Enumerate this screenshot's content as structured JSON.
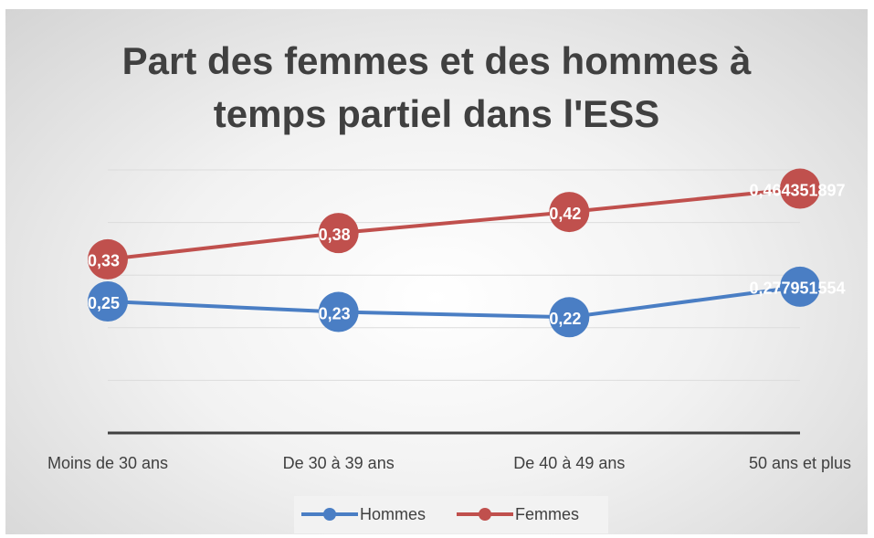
{
  "chart_data": {
    "type": "line",
    "title": "Part des femmes et des hommes à temps partiel dans l'ESS",
    "categories": [
      "Moins de 30 ans",
      "De 30 à 39 ans",
      "De 40 à 49 ans",
      "50 ans et plus"
    ],
    "series": [
      {
        "name": "Hommes",
        "color": "#4a7ec4",
        "values": [
          0.25,
          0.23,
          0.22,
          0.277951554
        ],
        "value_labels": [
          "0,25",
          "0,23",
          "0,22",
          "0,277951554"
        ]
      },
      {
        "name": "Femmes",
        "color": "#c0504d",
        "values": [
          0.33,
          0.38,
          0.42,
          0.464351897
        ],
        "value_labels": [
          "0,33",
          "0,38",
          "0,42",
          "0,464351897"
        ]
      }
    ],
    "ylim": [
      0,
      0.5
    ],
    "yticks": [
      0,
      0.1,
      0.2,
      0.3,
      0.4,
      0.5
    ],
    "grid": true,
    "legend": "bottom"
  }
}
